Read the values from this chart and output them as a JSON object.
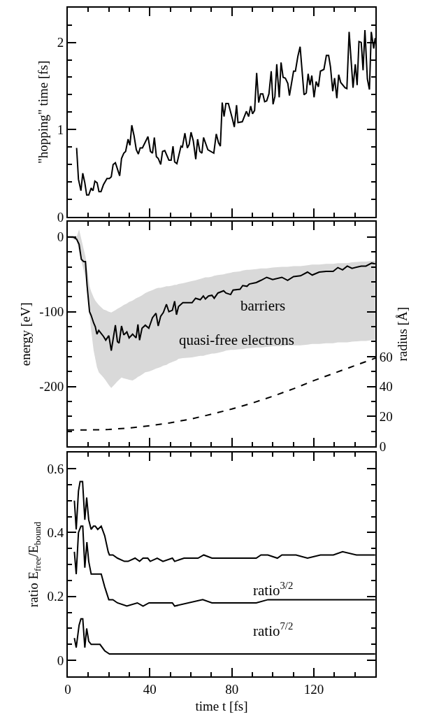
{
  "chart_data": [
    {
      "type": "line",
      "ylabel": "\"hopping\" time [fs]",
      "tick_labels": "y",
      "xlim": [
        0,
        150
      ],
      "xticks": [
        0,
        {
          "value": 10,
          "label": null
        },
        {
          "value": 20,
          "label": null
        },
        {
          "value": 30,
          "label": null
        },
        40,
        {
          "value": 50,
          "label": null
        },
        {
          "value": 60,
          "label": null
        },
        {
          "value": 70,
          "label": null
        },
        80,
        {
          "value": 90,
          "label": null
        },
        {
          "value": 100,
          "label": null
        },
        {
          "value": 110,
          "label": null
        },
        120,
        {
          "value": 130,
          "label": null
        },
        {
          "value": 140,
          "label": null
        },
        {
          "value": 150,
          "label": null
        }
      ],
      "ylim": [
        0,
        2.4
      ],
      "yticks": [
        0,
        {
          "value": 0.2,
          "label": null
        },
        {
          "value": 0.4,
          "label": null
        },
        {
          "value": 0.6,
          "label": null
        },
        {
          "value": 0.8,
          "label": null
        },
        1,
        {
          "value": 1.2,
          "label": null
        },
        {
          "value": 1.4,
          "label": null
        },
        {
          "value": 1.6,
          "label": null
        },
        {
          "value": 1.8,
          "label": null
        },
        2,
        {
          "value": 2.2,
          "label": null
        },
        {
          "value": 2.4,
          "label": null
        }
      ],
      "series": [
        {
          "color": "#000000",
          "line_style": "solid",
          "x": [
            4.3,
            5.2,
            6.4,
            7.3,
            8.3,
            9.2,
            10.2,
            11.4,
            12.3,
            13.2,
            14.3,
            15.2,
            16.2,
            17.4,
            19.1,
            20.3,
            21.2,
            22.1,
            23.2,
            25.3,
            26.2,
            27.3,
            28.2,
            29.4,
            30.3,
            31.2,
            32.3,
            33.4,
            34.4,
            35.3,
            36.4,
            39.1,
            40.3,
            41.3,
            42.2,
            43.2,
            44.1,
            45.3,
            46.2,
            47.3,
            49.3,
            50.4,
            51.3,
            52.1,
            53.2,
            55.2,
            55.9,
            57.1,
            58.3,
            59.2,
            60.1,
            61.2,
            62.4,
            63.3,
            64.4,
            65.4,
            66.2,
            68.3,
            71.2,
            72.4,
            73.5,
            74.4,
            75.3,
            76.2,
            77.1,
            78.3,
            80.3,
            81.2,
            82.3,
            83.0,
            85.1,
            87.1,
            88.2,
            89.2,
            90.1,
            91.1,
            92.1,
            93.1,
            94.0,
            95.1,
            96.0,
            97.0,
            98.1,
            99.2,
            100.1,
            101.0,
            101.9,
            103.1,
            104.0,
            105.0,
            106.1,
            107.3,
            108.1,
            110.1,
            111.0,
            112.2,
            113.3,
            115.2,
            116.3,
            117.2,
            118.1,
            119.0,
            120.1,
            121.1,
            122.2,
            123.2,
            124.9,
            126.1,
            127.2,
            128.1,
            129.2,
            130.1,
            131.2,
            132.1,
            133.1,
            135.2,
            136.1,
            137.2,
            139.1,
            140.2,
            141.1,
            142.0,
            143.1,
            144.0,
            144.9,
            146.1,
            147.1,
            148.0,
            149.2,
            149.9
          ],
          "values": [
            0.79,
            0.43,
            0.3,
            0.5,
            0.39,
            0.25,
            0.25,
            0.33,
            0.3,
            0.41,
            0.39,
            0.29,
            0.29,
            0.37,
            0.44,
            0.44,
            0.46,
            0.6,
            0.62,
            0.47,
            0.67,
            0.73,
            0.75,
            0.89,
            0.82,
            1.05,
            0.93,
            0.77,
            0.72,
            0.79,
            0.79,
            0.92,
            0.75,
            0.73,
            0.91,
            0.69,
            0.67,
            0.6,
            0.75,
            0.76,
            0.65,
            0.65,
            0.81,
            0.63,
            0.61,
            0.81,
            0.8,
            0.96,
            0.79,
            0.83,
            0.97,
            0.87,
            0.66,
            0.89,
            0.75,
            0.73,
            0.91,
            0.77,
            0.73,
            0.95,
            0.85,
            0.81,
            1.31,
            1.15,
            1.3,
            1.3,
            1.12,
            1.03,
            1.28,
            1.08,
            1.09,
            1.21,
            1.15,
            1.27,
            1.18,
            1.22,
            1.65,
            1.31,
            1.41,
            1.41,
            1.32,
            1.33,
            1.41,
            1.67,
            1.29,
            1.38,
            1.75,
            1.37,
            1.77,
            1.6,
            1.59,
            1.53,
            1.39,
            1.67,
            1.67,
            1.84,
            1.95,
            1.4,
            1.42,
            1.64,
            1.51,
            1.62,
            1.37,
            1.55,
            1.49,
            1.67,
            1.69,
            1.85,
            1.85,
            1.72,
            1.44,
            1.59,
            1.36,
            1.63,
            1.54,
            1.48,
            1.47,
            2.12,
            1.48,
            1.75,
            1.51,
            2.01,
            2.0,
            1.68,
            2.14,
            1.58,
            1.46,
            2.12,
            1.93,
            2.05
          ]
        }
      ]
    },
    {
      "type": "line",
      "ylabel": "energy [eV]",
      "y2label": "radius [Å]",
      "tick_labels": "y",
      "xlim": [
        0,
        150
      ],
      "xticks": [
        0,
        {
          "value": 10,
          "label": null
        },
        {
          "value": 20,
          "label": null
        },
        {
          "value": 30,
          "label": null
        },
        40,
        {
          "value": 50,
          "label": null
        },
        {
          "value": 60,
          "label": null
        },
        {
          "value": 70,
          "label": null
        },
        80,
        {
          "value": 90,
          "label": null
        },
        {
          "value": 100,
          "label": null
        },
        {
          "value": 110,
          "label": null
        },
        120,
        {
          "value": 130,
          "label": null
        },
        {
          "value": 140,
          "label": null
        },
        {
          "value": 150,
          "label": null
        }
      ],
      "ylim": [
        -280,
        20
      ],
      "yticks": [
        {
          "value": -280,
          "label": null
        },
        {
          "value": -260,
          "label": null
        },
        {
          "value": -240,
          "label": null
        },
        {
          "value": -220,
          "label": null
        },
        -200,
        {
          "value": -180,
          "label": null
        },
        {
          "value": -160,
          "label": null
        },
        {
          "value": -140,
          "label": null
        },
        {
          "value": -120,
          "label": null
        },
        -100,
        {
          "value": -80,
          "label": null
        },
        {
          "value": -60,
          "label": null
        },
        {
          "value": -40,
          "label": null
        },
        {
          "value": -20,
          "label": null
        },
        0,
        {
          "value": 20,
          "label": null
        }
      ],
      "y2lim": [
        0,
        150
      ],
      "y2ticks": [
        0,
        20,
        40,
        60
      ],
      "annotations": [
        "barriers",
        "quasi-free electrons"
      ],
      "series": [
        {
          "color": "#000000",
          "line_style": "solid",
          "upper": [
            0,
            0,
            0,
            10,
            -3,
            -16,
            -26,
            -41,
            -66,
            -73,
            -81,
            -85,
            -88,
            -91,
            -97,
            -98,
            -100,
            -101,
            -98,
            -96,
            -95,
            -93,
            -91,
            -89,
            -87,
            -85,
            -82,
            -81,
            -80,
            -78,
            -75,
            -73,
            -71,
            -69,
            -68,
            -68,
            -67,
            -66,
            -66,
            -65,
            -64,
            -64,
            -63,
            -62,
            -59,
            -58,
            -56,
            -55,
            -54,
            -54,
            -53,
            -52,
            -51,
            -50,
            -49,
            -48,
            -47,
            -46,
            -45,
            -44,
            -44,
            -43,
            -42,
            -42,
            -41,
            -40,
            -40,
            -39,
            -39,
            -38,
            -37,
            -37,
            -36,
            -36,
            -35,
            -35,
            -35,
            -34,
            -33,
            -33,
            -32,
            -32
          ],
          "lower": [
            0,
            -3,
            -5,
            -20,
            -32,
            -44,
            -54,
            -71,
            -104,
            -125,
            -152,
            -163,
            -174,
            -181,
            -188,
            -192,
            -198,
            -202,
            -196,
            -193,
            -191,
            -188,
            -189,
            -190,
            -191,
            -192,
            -189,
            -187,
            -186,
            -184,
            -181,
            -180,
            -178,
            -176,
            -175,
            -174,
            -172,
            -171,
            -169,
            -167,
            -166,
            -165,
            -163,
            -162,
            -161,
            -160,
            -159,
            -159,
            -158,
            -157,
            -156,
            -156,
            -155,
            -153,
            -152,
            -151,
            -151,
            -150,
            -150,
            -149,
            -149,
            -148,
            -148,
            -147,
            -146,
            -146,
            -145,
            -145,
            -145,
            -144,
            -143,
            -143,
            -142,
            -142,
            -141,
            -141,
            -141,
            -140,
            -139,
            -139,
            -138,
            -138
          ],
          "x": [
            0,
            2.6,
            4.3,
            5.5,
            6.6,
            7.7,
            8.6,
            9.4,
            10.6,
            11.4,
            12.6,
            13.4,
            14.2,
            15.1,
            17.4,
            18.5,
            20.0,
            21.2,
            23.2,
            24.2,
            25.0,
            26.2,
            27.3,
            28.8,
            29.9,
            31.6,
            33.3,
            34.2,
            35.0,
            36.2,
            37.8,
            39.5,
            41.3,
            43.0,
            44.1,
            45.3,
            46.6,
            48.1,
            49.3,
            51.0,
            52.1,
            53.0,
            54.0,
            56.1,
            60.6,
            62.3,
            64.6,
            66.1,
            67.1,
            68.6,
            70.3,
            71.4,
            73.2,
            76.0,
            77.1,
            79.4,
            80.6,
            84.0,
            85.3,
            87.4,
            88.5,
            91.9,
            94.2,
            97.0,
            99.9,
            104.4,
            107.2,
            110.1,
            113.5,
            116.9,
            119.2,
            122.6,
            126.0,
            129.4,
            131.7,
            134.0,
            136.3,
            138.6,
            143.1,
            145.4,
            148.2,
            149.9
          ],
          "values": [
            0,
            0,
            -3,
            -10,
            -30,
            -33,
            -33,
            -65,
            -100,
            -105,
            -115,
            -120,
            -130,
            -125,
            -133,
            -138,
            -132,
            -152,
            -118,
            -140,
            -142,
            -119,
            -131,
            -127,
            -135,
            -130,
            -135,
            -117,
            -138,
            -122,
            -118,
            -122,
            -108,
            -102,
            -119,
            -106,
            -101,
            -90,
            -100,
            -98,
            -86,
            -104,
            -93,
            -88,
            -88,
            -82,
            -84,
            -79,
            -83,
            -79,
            -78,
            -82,
            -75,
            -72,
            -75,
            -77,
            -71,
            -70,
            -65,
            -66,
            -63,
            -61,
            -58,
            -54,
            -57,
            -54,
            -58,
            -53,
            -52,
            -47,
            -51,
            -47,
            -46,
            -46,
            -41,
            -44,
            -39,
            -42,
            -39,
            -39,
            -35,
            -36
          ]
        },
        {
          "color": "#000000",
          "line_style": "dashed",
          "axis": "y2",
          "x": [
            0,
            10,
            20,
            30,
            40,
            50,
            60,
            70,
            80,
            90,
            100,
            110,
            120,
            130,
            140,
            150
          ],
          "values": [
            11,
            11,
            11.3,
            12.3,
            13.8,
            15.8,
            18.3,
            21.5,
            25,
            29,
            33.5,
            38.5,
            44,
            49,
            54,
            59
          ]
        }
      ]
    },
    {
      "type": "line",
      "xlabel": "time t [fs]",
      "ylabel": "ratio E$_{free}$/E$_{bound}$",
      "xlim": [
        0,
        150
      ],
      "xticks": [
        0,
        {
          "value": 10,
          "label": null
        },
        {
          "value": 20,
          "label": null
        },
        {
          "value": 30,
          "label": null
        },
        40,
        {
          "value": 50,
          "label": null
        },
        {
          "value": 60,
          "label": null
        },
        {
          "value": 70,
          "label": null
        },
        80,
        {
          "value": 90,
          "label": null
        },
        {
          "value": 100,
          "label": null
        },
        {
          "value": 110,
          "label": null
        },
        120,
        {
          "value": 130,
          "label": null
        },
        {
          "value": 140,
          "label": null
        },
        {
          "value": 150,
          "label": null
        }
      ],
      "ylim": [
        -0.05,
        0.65
      ],
      "yticks": [
        {
          "value": -0.05,
          "label": null
        },
        0,
        {
          "value": 0.05,
          "label": null
        },
        {
          "value": 0.1,
          "label": null
        },
        {
          "value": 0.15,
          "label": null
        },
        0.2,
        {
          "value": 0.25,
          "label": null
        },
        {
          "value": 0.3,
          "label": null
        },
        {
          "value": 0.35,
          "label": null
        },
        0.4,
        {
          "value": 0.45,
          "label": null
        },
        {
          "value": 0.5,
          "label": null
        },
        {
          "value": 0.55,
          "label": null
        },
        0.6,
        {
          "value": 0.65,
          "label": null
        }
      ],
      "annotations": [
        "ratio$^{3/2}$",
        "ratio$^{7/2}$"
      ],
      "series": [
        {
          "color": "#000000",
          "line_style": "solid",
          "x": [
            3.2,
            4.1,
            5.2,
            6.0,
            7.2,
            8.3,
            9.2,
            10.2,
            11.4,
            12.5,
            13.4,
            14.6,
            16.3,
            18.0,
            19.7,
            20.3,
            22.0,
            24.2,
            27.6,
            29.4,
            32.8,
            35.0,
            36.7,
            39.0,
            40.2,
            43.6,
            46.4,
            51.0,
            52.1,
            56.7,
            63.5,
            66.3,
            70.3,
            77.1,
            82.3,
            87.4,
            91.9,
            94.2,
            97.6,
            102.2,
            104.4,
            111.3,
            116.9,
            123.2,
            129.5,
            134.0,
            140.8,
            149.9
          ],
          "values": [
            0.5,
            0.41,
            0.53,
            0.56,
            0.56,
            0.44,
            0.51,
            0.44,
            0.41,
            0.42,
            0.42,
            0.41,
            0.42,
            0.39,
            0.34,
            0.33,
            0.33,
            0.32,
            0.31,
            0.31,
            0.32,
            0.31,
            0.32,
            0.32,
            0.31,
            0.32,
            0.31,
            0.32,
            0.31,
            0.32,
            0.32,
            0.33,
            0.32,
            0.32,
            0.32,
            0.32,
            0.32,
            0.33,
            0.33,
            0.32,
            0.33,
            0.33,
            0.32,
            0.33,
            0.33,
            0.34,
            0.33,
            0.33
          ]
        },
        {
          "color": "#000000",
          "line_style": "solid",
          "x": [
            3.2,
            4.1,
            5.2,
            6.4,
            7.3,
            8.3,
            9.3,
            10.2,
            11.4,
            13.4,
            14.6,
            16.3,
            18.0,
            20.0,
            22.0,
            24.2,
            28.8,
            33.9,
            36.7,
            39.6,
            43.6,
            51.0,
            52.1,
            65.8,
            70.3,
            81.7,
            91.9,
            97.6,
            104.4,
            111.3,
            129.5,
            140.8,
            149.9
          ],
          "values": [
            0.34,
            0.27,
            0.4,
            0.42,
            0.42,
            0.29,
            0.37,
            0.31,
            0.27,
            0.27,
            0.27,
            0.27,
            0.23,
            0.19,
            0.19,
            0.18,
            0.17,
            0.18,
            0.17,
            0.18,
            0.18,
            0.18,
            0.17,
            0.19,
            0.18,
            0.18,
            0.18,
            0.19,
            0.19,
            0.19,
            0.19,
            0.19,
            0.19
          ]
        },
        {
          "color": "#000000",
          "line_style": "solid",
          "x": [
            3.2,
            4.1,
            5.5,
            6.4,
            7.3,
            8.3,
            9.2,
            10.2,
            11.4,
            13.4,
            15.7,
            18.0,
            20.3,
            22.5,
            29.4,
            54.4,
            99.9,
            149.9
          ],
          "values": [
            0.07,
            0.04,
            0.11,
            0.13,
            0.13,
            0.04,
            0.1,
            0.06,
            0.05,
            0.05,
            0.05,
            0.03,
            0.02,
            0.02,
            0.02,
            0.02,
            0.02,
            0.02
          ]
        }
      ]
    }
  ]
}
